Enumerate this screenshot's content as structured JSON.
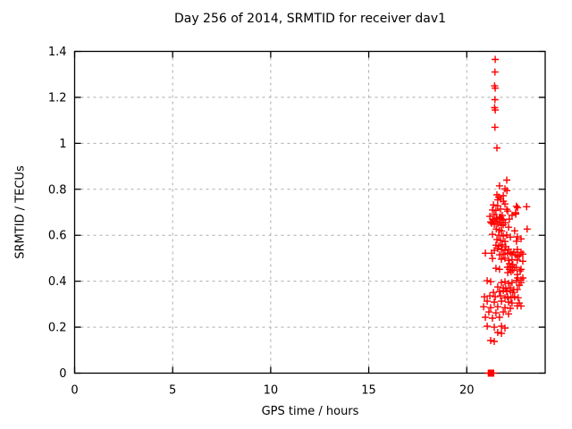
{
  "chart_data": {
    "type": "scatter",
    "title": "Day 256 of 2014, SRMTID for receiver dav1",
    "xlabel": "GPS time / hours",
    "ylabel": "SRMTID / TECUs",
    "xlim": [
      0,
      24
    ],
    "ylim": [
      0,
      1.4
    ],
    "x_ticks": [
      0,
      5,
      10,
      15,
      20
    ],
    "x_tick_labels": [
      "0",
      "5",
      "10",
      "15",
      "20"
    ],
    "y_ticks": [
      0,
      0.2,
      0.4,
      0.6,
      0.8,
      1.0,
      1.2,
      1.4
    ],
    "y_tick_labels": [
      "0",
      "0.2",
      "0.4",
      "0.6",
      "0.8",
      "1",
      "1.2",
      "1.4"
    ],
    "grid": true,
    "grid_style": "dashed",
    "legend_position": "none",
    "colors": {
      "marker": "#ff0000",
      "axis": "#000000",
      "grid": "#ababab",
      "background": "#ffffff",
      "text": "#000000"
    },
    "series": [
      {
        "name": "srmtid-points",
        "marker": "plus",
        "color": "#ff0000",
        "points": [
          [
            21.45,
            1.365
          ],
          [
            21.44,
            1.31
          ],
          [
            21.42,
            1.25
          ],
          [
            21.45,
            1.24
          ],
          [
            21.44,
            1.19
          ],
          [
            21.42,
            1.155
          ],
          [
            21.45,
            1.145
          ],
          [
            21.44,
            1.07
          ],
          [
            21.54,
            0.98
          ],
          [
            22.04,
            0.84
          ],
          [
            21.67,
            0.815
          ],
          [
            21.95,
            0.802
          ],
          [
            22.05,
            0.794
          ],
          [
            21.54,
            0.776
          ],
          [
            21.86,
            0.772
          ],
          [
            21.63,
            0.766
          ],
          [
            21.73,
            0.758
          ],
          [
            21.58,
            0.754
          ],
          [
            21.87,
            0.748
          ],
          [
            21.95,
            0.736
          ],
          [
            21.36,
            0.732
          ],
          [
            21.58,
            0.728
          ],
          [
            22.53,
            0.726
          ],
          [
            22.59,
            0.72
          ],
          [
            23.05,
            0.724
          ],
          [
            21.31,
            0.71
          ],
          [
            21.49,
            0.708
          ],
          [
            21.72,
            0.714
          ],
          [
            22.04,
            0.713
          ],
          [
            22.09,
            0.705
          ],
          [
            22.49,
            0.698
          ],
          [
            21.4,
            0.69
          ],
          [
            21.81,
            0.686
          ],
          [
            21.73,
            0.679
          ],
          [
            21.18,
            0.682
          ],
          [
            22.31,
            0.687
          ],
          [
            22.5,
            0.692
          ],
          [
            21.54,
            0.67
          ],
          [
            22.17,
            0.67
          ],
          [
            21.86,
            0.666
          ],
          [
            21.41,
            0.662
          ],
          [
            21.22,
            0.658
          ],
          [
            21.5,
            0.674
          ],
          [
            21.67,
            0.678
          ],
          [
            21.32,
            0.669
          ],
          [
            21.77,
            0.671
          ],
          [
            21.49,
            0.661
          ],
          [
            21.68,
            0.657
          ],
          [
            21.58,
            0.65
          ],
          [
            21.4,
            0.647
          ],
          [
            21.77,
            0.643
          ],
          [
            21.27,
            0.652
          ],
          [
            21.86,
            0.646
          ],
          [
            21.96,
            0.655
          ],
          [
            22.13,
            0.635
          ],
          [
            21.5,
            0.627
          ],
          [
            21.67,
            0.622
          ],
          [
            21.78,
            0.618
          ],
          [
            22.44,
            0.619
          ],
          [
            23.08,
            0.627
          ],
          [
            21.31,
            0.604
          ],
          [
            21.63,
            0.6
          ],
          [
            21.86,
            0.597
          ],
          [
            22.04,
            0.601
          ],
          [
            22.22,
            0.592
          ],
          [
            22.58,
            0.593
          ],
          [
            21.54,
            0.581
          ],
          [
            21.72,
            0.577
          ],
          [
            21.95,
            0.573
          ],
          [
            22.53,
            0.574
          ],
          [
            22.77,
            0.584
          ],
          [
            21.49,
            0.557
          ],
          [
            21.63,
            0.553
          ],
          [
            21.81,
            0.558
          ],
          [
            21.99,
            0.55
          ],
          [
            21.58,
            0.542
          ],
          [
            21.77,
            0.538
          ],
          [
            21.4,
            0.534
          ],
          [
            21.95,
            0.535
          ],
          [
            22.13,
            0.539
          ],
          [
            21.27,
            0.522
          ],
          [
            22.22,
            0.523
          ],
          [
            22.4,
            0.527
          ],
          [
            22.58,
            0.538
          ],
          [
            22.77,
            0.526
          ],
          [
            20.95,
            0.522
          ],
          [
            21.67,
            0.515
          ],
          [
            21.86,
            0.518
          ],
          [
            22.08,
            0.522
          ],
          [
            22.31,
            0.517
          ],
          [
            22.49,
            0.514
          ],
          [
            22.68,
            0.511
          ],
          [
            22.86,
            0.518
          ],
          [
            21.31,
            0.499
          ],
          [
            21.77,
            0.496
          ],
          [
            21.95,
            0.5
          ],
          [
            22.13,
            0.491
          ],
          [
            22.31,
            0.494
          ],
          [
            22.58,
            0.492
          ],
          [
            22.86,
            0.487
          ],
          [
            22.59,
            0.507
          ],
          [
            22.17,
            0.476
          ],
          [
            22.35,
            0.472
          ],
          [
            22.26,
            0.464
          ],
          [
            22.08,
            0.461
          ],
          [
            22.44,
            0.46
          ],
          [
            22.17,
            0.452
          ],
          [
            22.35,
            0.448
          ],
          [
            22.26,
            0.441
          ],
          [
            22.09,
            0.437
          ],
          [
            21.49,
            0.456
          ],
          [
            21.67,
            0.452
          ],
          [
            22.53,
            0.46
          ],
          [
            22.77,
            0.452
          ],
          [
            22.72,
            0.445
          ],
          [
            22.58,
            0.429
          ],
          [
            22.86,
            0.414
          ],
          [
            21.04,
            0.402
          ],
          [
            21.22,
            0.398
          ],
          [
            21.77,
            0.394
          ],
          [
            21.95,
            0.398
          ],
          [
            22.13,
            0.39
          ],
          [
            22.31,
            0.394
          ],
          [
            22.53,
            0.403
          ],
          [
            22.77,
            0.394
          ],
          [
            22.68,
            0.383
          ],
          [
            21.58,
            0.375
          ],
          [
            21.86,
            0.371
          ],
          [
            21.99,
            0.367
          ],
          [
            22.22,
            0.371
          ],
          [
            22.4,
            0.363
          ],
          [
            22.58,
            0.364
          ],
          [
            22.59,
            0.414
          ],
          [
            22.77,
            0.406
          ],
          [
            21.36,
            0.351
          ],
          [
            21.67,
            0.355
          ],
          [
            21.86,
            0.359
          ],
          [
            22.04,
            0.355
          ],
          [
            22.22,
            0.359
          ],
          [
            22.35,
            0.351
          ],
          [
            20.9,
            0.332
          ],
          [
            21.18,
            0.336
          ],
          [
            21.45,
            0.332
          ],
          [
            21.72,
            0.336
          ],
          [
            21.95,
            0.328
          ],
          [
            22.08,
            0.332
          ],
          [
            22.26,
            0.328
          ],
          [
            22.44,
            0.332
          ],
          [
            22.62,
            0.328
          ],
          [
            21.04,
            0.313
          ],
          [
            21.4,
            0.309
          ],
          [
            21.77,
            0.313
          ],
          [
            22.13,
            0.309
          ],
          [
            22.31,
            0.305
          ],
          [
            22.68,
            0.305
          ],
          [
            22.58,
            0.293
          ],
          [
            22.77,
            0.292
          ],
          [
            20.86,
            0.289
          ],
          [
            21.22,
            0.285
          ],
          [
            21.58,
            0.289
          ],
          [
            21.95,
            0.285
          ],
          [
            22.22,
            0.282
          ],
          [
            21.13,
            0.266
          ],
          [
            21.49,
            0.262
          ],
          [
            21.86,
            0.266
          ],
          [
            22.13,
            0.258
          ],
          [
            20.95,
            0.243
          ],
          [
            21.31,
            0.239
          ],
          [
            21.67,
            0.243
          ],
          [
            21.04,
            0.204
          ],
          [
            21.4,
            0.2
          ],
          [
            21.77,
            0.204
          ],
          [
            21.95,
            0.196
          ],
          [
            21.58,
            0.177
          ],
          [
            21.77,
            0.173
          ],
          [
            21.22,
            0.142
          ],
          [
            21.4,
            0.138
          ],
          [
            21.1,
            0
          ],
          [
            21.13,
            0
          ],
          [
            21.16,
            0
          ],
          [
            21.19,
            0
          ],
          [
            21.22,
            0
          ],
          [
            21.25,
            0
          ],
          [
            21.28,
            0
          ],
          [
            21.31,
            0
          ],
          [
            21.34,
            0
          ],
          [
            21.37,
            0
          ]
        ]
      }
    ]
  }
}
